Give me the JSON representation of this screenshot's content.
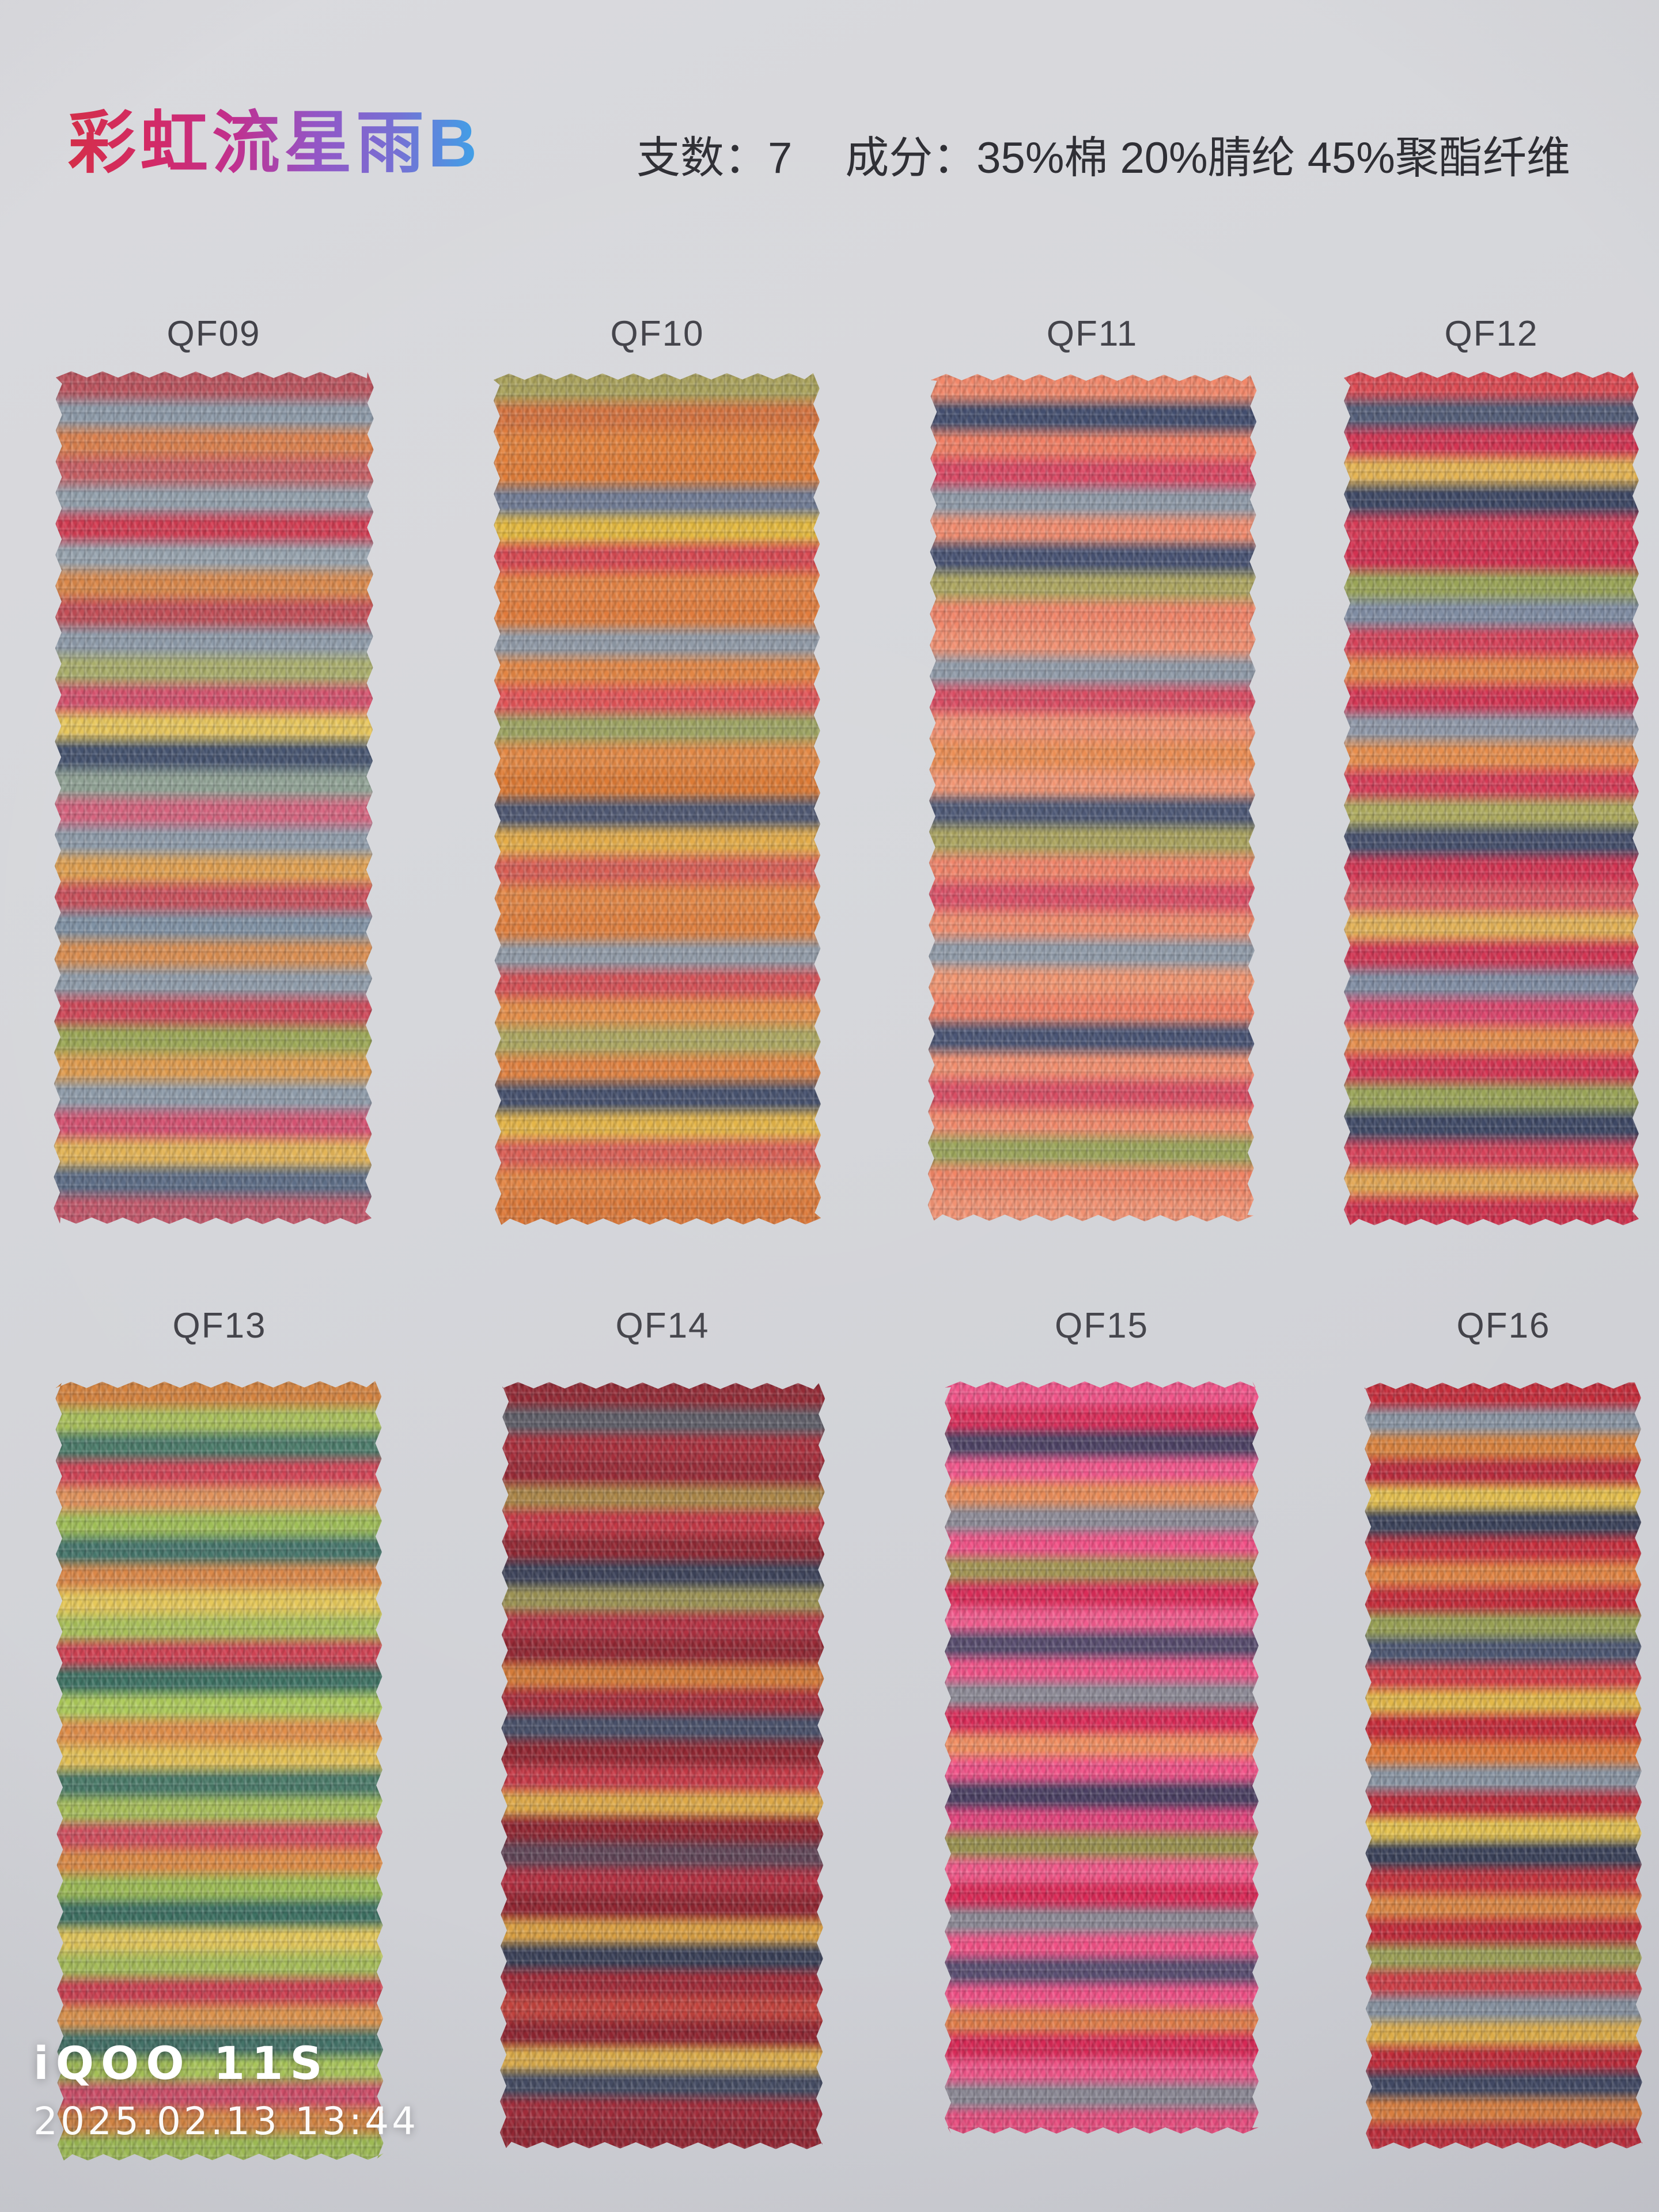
{
  "page": {
    "title": "彩虹流星雨B",
    "title_gradient": [
      "#d42f49",
      "#d32a66",
      "#c12f8e",
      "#9355c6",
      "#7470d4",
      "#3ba2e8"
    ],
    "count": "支数：7",
    "composition": "成分：35%棉 20%腈纶 45%聚酯纤维",
    "background_color": "#d4d5d9",
    "spec_text_color": "#2d2d33",
    "label_text_color": "#414148"
  },
  "watermark": {
    "device": "iQOO 11S",
    "datetime": "2025.02.13 13:44",
    "color": "#ffffff"
  },
  "swatches": [
    {
      "id": "QF09",
      "dominant": "#8d9aa8",
      "stripes": [
        "#b9535c",
        "#8d9aa8",
        "#d97f4e",
        "#c65f63",
        "#93a0ac",
        "#cf3b50",
        "#97a3ae",
        "#d8874b",
        "#bf4d55",
        "#8d9aa8",
        "#a9ad6b",
        "#d04f6a",
        "#e6c55c",
        "#42506b",
        "#8fa193",
        "#d2627c",
        "#8d9aa8",
        "#df9f50",
        "#c84f59",
        "#7e90a2",
        "#d88c50",
        "#8d9aa8",
        "#cb4656",
        "#9aa655",
        "#dd9a4e",
        "#8d9aa8",
        "#d0506e",
        "#e2b357",
        "#5a6a82",
        "#c05668"
      ]
    },
    {
      "id": "QF10",
      "dominant": "#e07f3a",
      "stripes": [
        "#a8a05a",
        "#d2703d",
        "#e07f3a",
        "#dd7a36",
        "#6d7890",
        "#e3b83e",
        "#d4454e",
        "#e27f40",
        "#de7838",
        "#8d97a4",
        "#e0813f",
        "#dd4f52",
        "#9aa05e",
        "#e08440",
        "#d9752f",
        "#47506a",
        "#e2a944",
        "#d4584e",
        "#e08240",
        "#dd7a38",
        "#8d97a4",
        "#d04b50",
        "#e28a44",
        "#aaa45c",
        "#df7e3c",
        "#3f4a66",
        "#e2b244",
        "#d65a50",
        "#e08140",
        "#d97434"
      ]
    },
    {
      "id": "QF11",
      "dominant": "#ee8265",
      "stripes": [
        "#ef8668",
        "#3f4a6a",
        "#ee7d62",
        "#d64560",
        "#8d98a6",
        "#f08a6c",
        "#434e6e",
        "#aca45e",
        "#ee8265",
        "#ef8d6e",
        "#8d98a6",
        "#d5485e",
        "#f08f70",
        "#e98a50",
        "#f0926f",
        "#47526f",
        "#a8a05a",
        "#ee8064",
        "#d64a60",
        "#ef8a6a",
        "#8d98a6",
        "#f0936e",
        "#ee7c60",
        "#434e6e",
        "#f08c6c",
        "#d5485e",
        "#ef8768",
        "#98a257",
        "#ee8262",
        "#f09070"
      ]
    },
    {
      "id": "QF12",
      "dominant": "#ce3350",
      "stripes": [
        "#d84a52",
        "#525c76",
        "#cf3350",
        "#e4b455",
        "#3c4662",
        "#d23a54",
        "#ce2f4e",
        "#99a357",
        "#7e8ba0",
        "#d23f56",
        "#e2884a",
        "#ce3350",
        "#8d96a6",
        "#e58c4c",
        "#d23a54",
        "#aeaa5e",
        "#424c68",
        "#cf3350",
        "#d85a62",
        "#e2b157",
        "#ce3350",
        "#7e8ba0",
        "#d6436a",
        "#e28c4c",
        "#cf3350",
        "#99a357",
        "#3c4662",
        "#d23f56",
        "#e0a452",
        "#cb2f4a"
      ]
    },
    {
      "id": "QF13",
      "dominant": "#a9c05c",
      "stripes": [
        "#d2823f",
        "#a9c05c",
        "#4b7a68",
        "#cf4455",
        "#e0925c",
        "#9fbe58",
        "#46756a",
        "#d9884a",
        "#e5c85c",
        "#a9c05c",
        "#cc4252",
        "#3f7263",
        "#aecb5e",
        "#df8f4c",
        "#e3c158",
        "#4b7a68",
        "#a9c05c",
        "#d0505e",
        "#dd8c48",
        "#9fbe58",
        "#3f7263",
        "#e5ca5e",
        "#a9c05c",
        "#cc4252",
        "#df9650",
        "#46756a",
        "#aecb5e",
        "#d0506a",
        "#dd8c48",
        "#a2c058"
      ]
    },
    {
      "id": "QF14",
      "dominant": "#8e2630",
      "stripes": [
        "#8e2630",
        "#5b5a64",
        "#a52c38",
        "#952833",
        "#aa8446",
        "#c03542",
        "#8e2630",
        "#3a4056",
        "#9b9153",
        "#b03040",
        "#8e2630",
        "#d27a3a",
        "#a52c38",
        "#474e66",
        "#8e2630",
        "#c23a46",
        "#dda84a",
        "#8e2630",
        "#5f4456",
        "#b03040",
        "#8e2630",
        "#d9a046",
        "#3a4056",
        "#9e2c38",
        "#c1443e",
        "#8e2630",
        "#ddae4e",
        "#454c62",
        "#a02d3a",
        "#922732"
      ]
    },
    {
      "id": "QF15",
      "dominant": "#ee5287",
      "stripes": [
        "#ee5287",
        "#d62a56",
        "#4a3e60",
        "#ef558a",
        "#e78a58",
        "#8d8a96",
        "#ee4f84",
        "#a39453",
        "#d62a56",
        "#ef5a8c",
        "#55496a",
        "#ee5287",
        "#8d8a96",
        "#d62a56",
        "#ef8d62",
        "#ee5287",
        "#4a3e60",
        "#e0457c",
        "#9a9150",
        "#ee5a8a",
        "#d62a56",
        "#8d8a96",
        "#ef5286",
        "#5a4e70",
        "#ee5287",
        "#e2804e",
        "#d62a56",
        "#ef578a",
        "#8d8a96",
        "#e84f80"
      ]
    },
    {
      "id": "QF16",
      "dominant": "#c22c3a",
      "stripes": [
        "#c22c3a",
        "#8a95a3",
        "#d8823f",
        "#b92c3c",
        "#e5c050",
        "#3a4158",
        "#c5303e",
        "#e08445",
        "#c22c3a",
        "#98a055",
        "#4c5670",
        "#d04048",
        "#e2b84c",
        "#c22c3a",
        "#de7a3c",
        "#8a95a3",
        "#bb2e3c",
        "#e6c452",
        "#3a4158",
        "#c5343e",
        "#dd8846",
        "#c22c3a",
        "#a0a459",
        "#d04048",
        "#8a95a3",
        "#e2b14c",
        "#c22c3a",
        "#424a64",
        "#de8242",
        "#bf2f3c"
      ]
    }
  ]
}
